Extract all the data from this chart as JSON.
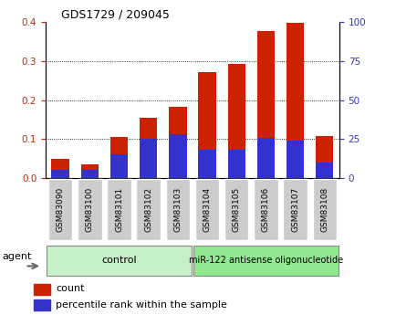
{
  "title": "GDS1729 / 209045",
  "categories": [
    "GSM83090",
    "GSM83100",
    "GSM83101",
    "GSM83102",
    "GSM83103",
    "GSM83104",
    "GSM83105",
    "GSM83106",
    "GSM83107",
    "GSM83108"
  ],
  "count_values": [
    0.05,
    0.035,
    0.105,
    0.155,
    0.182,
    0.272,
    0.292,
    0.376,
    0.398,
    0.108
  ],
  "percentile_values_pct": [
    5,
    5,
    15,
    25,
    28,
    18,
    18,
    26,
    24,
    10
  ],
  "bar_color": "#cc2200",
  "blue_color": "#3333cc",
  "ylim_left": [
    0,
    0.4
  ],
  "ylim_right": [
    0,
    100
  ],
  "yticks_left": [
    0,
    0.1,
    0.2,
    0.3,
    0.4
  ],
  "yticks_right": [
    0,
    25,
    50,
    75,
    100
  ],
  "bg_color": "#ffffff",
  "group1_label": "control",
  "group2_label": "miR-122 antisense oligonucleotide",
  "group1_color": "#c8f0c8",
  "group2_color": "#90e890",
  "agent_label": "agent",
  "legend_count_label": "count",
  "legend_pct_label": "percentile rank within the sample",
  "bar_width": 0.6,
  "tick_bg_color": "#cccccc"
}
